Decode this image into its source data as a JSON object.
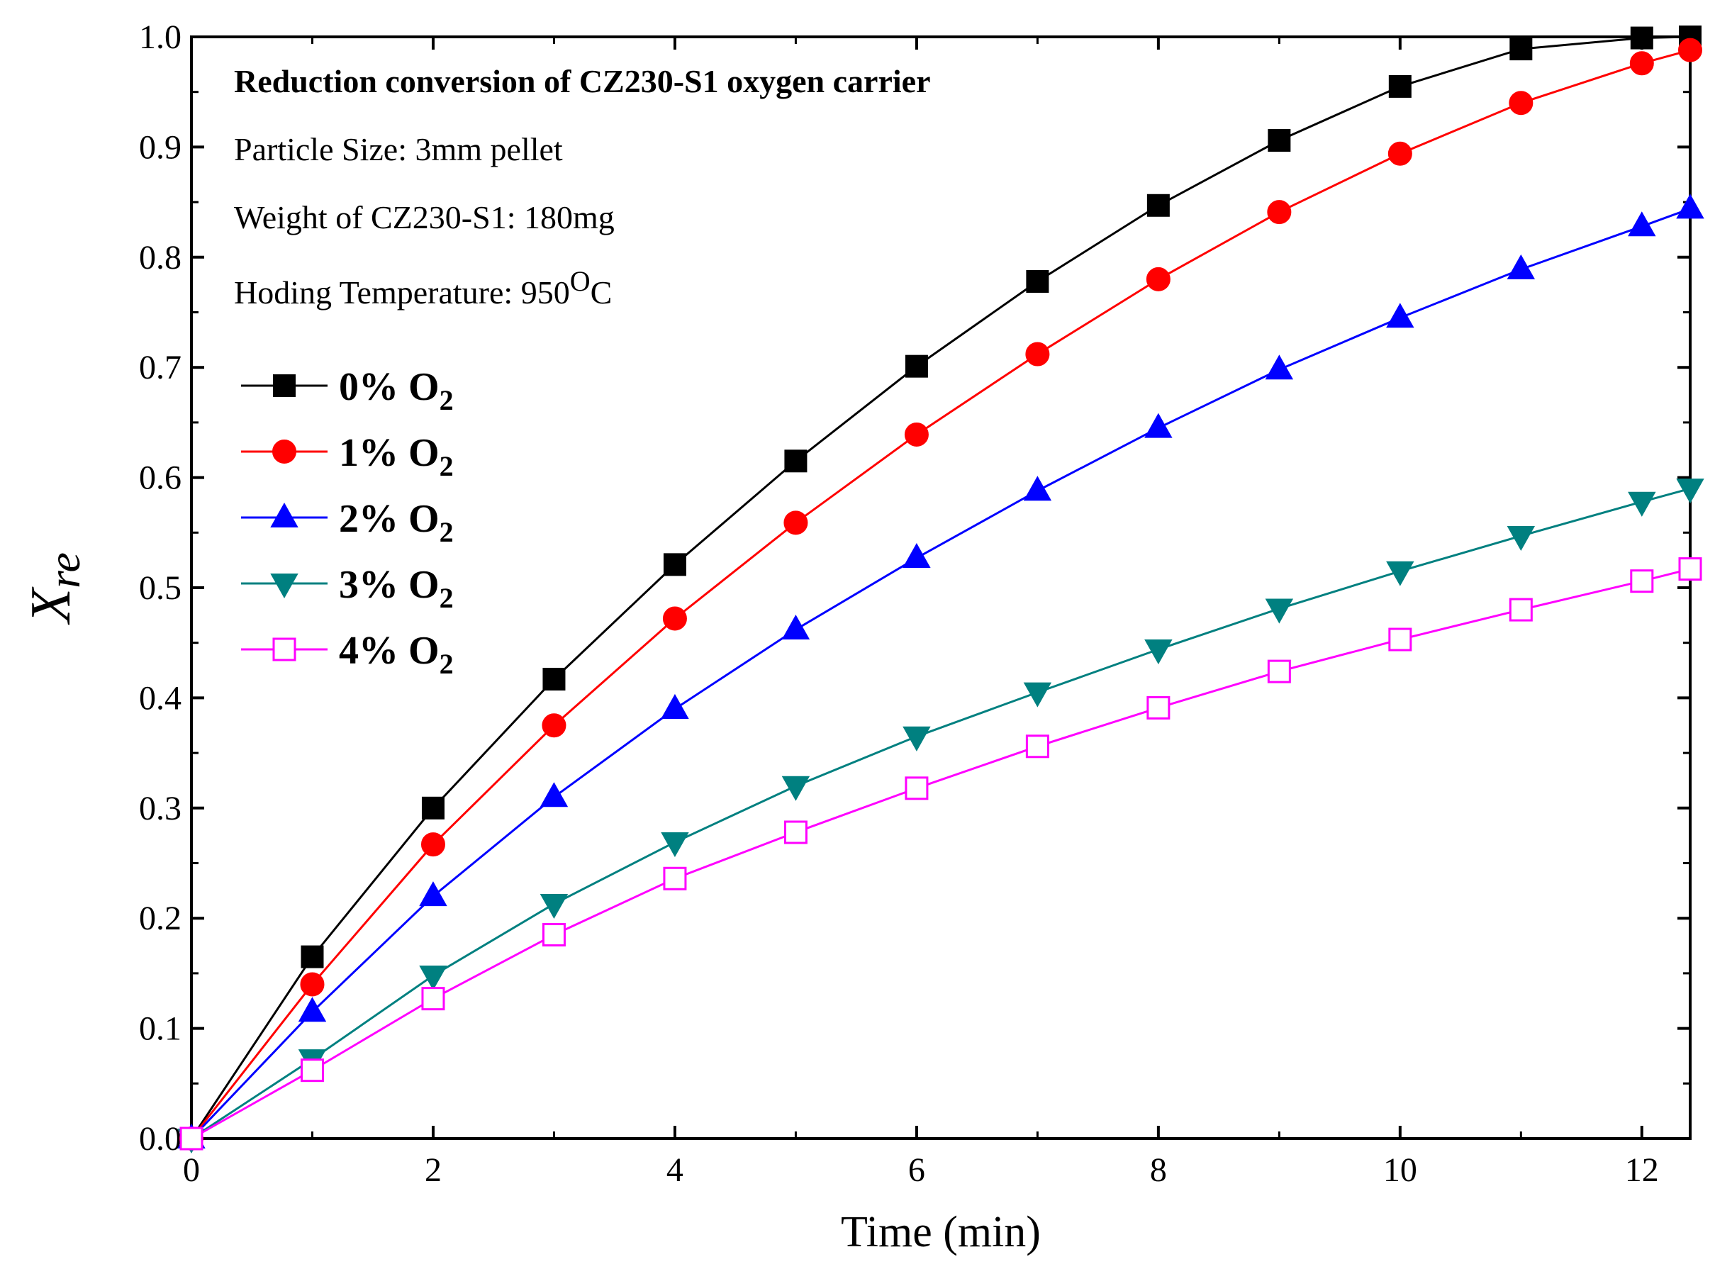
{
  "chart_data": {
    "type": "line",
    "xlabel": "Time (min)",
    "ylabel_main": "X",
    "ylabel_sub": "re",
    "xlim": [
      0,
      12.4
    ],
    "ylim": [
      0.0,
      1.0
    ],
    "x_ticks": [
      "0",
      "2",
      "4",
      "6",
      "8",
      "10",
      "12"
    ],
    "y_ticks": [
      "0.0",
      "0.1",
      "0.2",
      "0.3",
      "0.4",
      "0.5",
      "0.6",
      "0.7",
      "0.8",
      "0.9",
      "1.0"
    ],
    "grid": false,
    "legend_position": "upper-left",
    "annotations": {
      "title": "Reduction conversion of CZ230-S1 oxygen carrier",
      "particle_size": "Particle Size: 3mm pellet",
      "weight": "Weight of CZ230-S1: 180mg",
      "temperature_prefix": "Hoding Temperature: 950",
      "temperature_sup": "O",
      "temperature_suffix": "C"
    },
    "x": [
      0,
      1,
      2,
      3,
      4,
      5,
      6,
      7,
      8,
      9,
      10,
      11,
      12,
      12.4
    ],
    "series": [
      {
        "name": "0% O",
        "name_sub": "2",
        "color": "#000000",
        "marker": "square-filled",
        "values": [
          0.0,
          0.165,
          0.3,
          0.417,
          0.521,
          0.615,
          0.701,
          0.778,
          0.847,
          0.906,
          0.955,
          0.989,
          0.999,
          1.0
        ]
      },
      {
        "name": "1% O",
        "name_sub": "2",
        "color": "#ff0000",
        "marker": "circle-filled",
        "values": [
          0.0,
          0.14,
          0.267,
          0.375,
          0.472,
          0.559,
          0.639,
          0.712,
          0.78,
          0.841,
          0.894,
          0.94,
          0.976,
          0.988
        ]
      },
      {
        "name": "2% O",
        "name_sub": "2",
        "color": "#0000ff",
        "marker": "triangle-up-filled",
        "values": [
          0.0,
          0.115,
          0.22,
          0.31,
          0.39,
          0.462,
          0.527,
          0.588,
          0.645,
          0.698,
          0.745,
          0.789,
          0.828,
          0.844
        ]
      },
      {
        "name": "3% O",
        "name_sub": "2",
        "color": "#008080",
        "marker": "triangle-down-filled",
        "values": [
          0.0,
          0.072,
          0.148,
          0.213,
          0.269,
          0.32,
          0.365,
          0.405,
          0.444,
          0.481,
          0.515,
          0.547,
          0.578,
          0.59
        ]
      },
      {
        "name": "4% O",
        "name_sub": "2",
        "color": "#ff00ff",
        "marker": "square-open",
        "values": [
          0.0,
          0.062,
          0.127,
          0.185,
          0.236,
          0.278,
          0.318,
          0.356,
          0.391,
          0.424,
          0.453,
          0.48,
          0.506,
          0.517
        ]
      }
    ]
  }
}
